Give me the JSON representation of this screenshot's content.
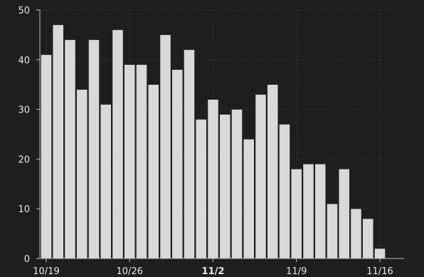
{
  "chart_data": {
    "type": "bar",
    "title": "",
    "xlabel": "",
    "ylabel": "",
    "ylim": [
      0,
      50
    ],
    "yticks": [
      0,
      10,
      20,
      30,
      40,
      50
    ],
    "categories": [
      "2023-10-19",
      "2023-10-20",
      "2023-10-21",
      "2023-10-22",
      "2023-10-23",
      "2023-10-24",
      "2023-10-25",
      "2023-10-26",
      "2023-10-27",
      "2023-10-28",
      "2023-10-29",
      "2023-10-30",
      "2023-10-31",
      "2023-11-01",
      "2023-11-02",
      "2023-11-03",
      "2023-11-04",
      "2023-11-05",
      "2023-11-06",
      "2023-11-07",
      "2023-11-08",
      "2023-11-09",
      "2023-11-10",
      "2023-11-11",
      "2023-11-12",
      "2023-11-13",
      "2023-11-14",
      "2023-11-15",
      "2023-11-16"
    ],
    "values": [
      41,
      47,
      44,
      34,
      44,
      31,
      46,
      39,
      39,
      35,
      45,
      38,
      42,
      28,
      32,
      29,
      30,
      24,
      33,
      35,
      27,
      18,
      19,
      19,
      11,
      18,
      10,
      8,
      2
    ],
    "x_tick_labels": [
      {
        "label": "10/19",
        "category": "2023-10-19",
        "bold": false
      },
      {
        "label": "10/26",
        "category": "2023-10-26",
        "bold": false
      },
      {
        "label": "11/2",
        "category": "2023-11-02",
        "bold": true
      },
      {
        "label": "11/9",
        "category": "2023-11-09",
        "bold": false
      },
      {
        "label": "11/16",
        "category": "2023-11-16",
        "bold": false
      }
    ],
    "grid": true,
    "legend": "none",
    "colors": {
      "background": "#1e1e1e",
      "bar": "#d9d9d9",
      "bar_edge": "#1e1e1e",
      "axis": "#bdbdbd",
      "grid": "#3c3c3c",
      "text": "#e6e6e6"
    }
  }
}
